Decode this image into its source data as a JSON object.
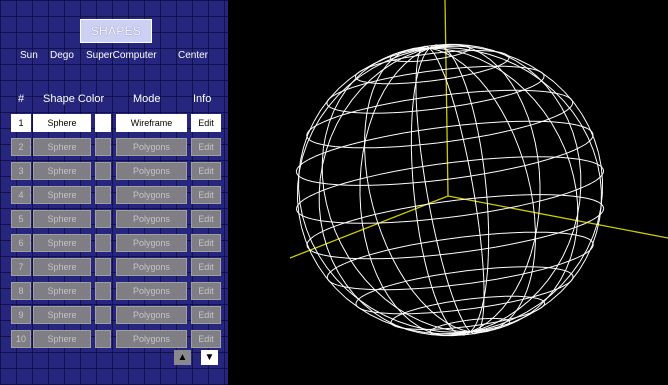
{
  "panel": {
    "title": "SHAPES",
    "credits": [
      "Sun",
      "Dego",
      "SuperComputer",
      "Center"
    ],
    "headers": {
      "number": "#",
      "shape_color": "Shape Color",
      "mode": "Mode",
      "info": "Info"
    },
    "rows": [
      {
        "num": "1",
        "shape": "Sphere",
        "mode": "Wireframe",
        "info": "Edit",
        "active": true
      },
      {
        "num": "2",
        "shape": "Sphere",
        "mode": "Polygons",
        "info": "Edit",
        "active": false
      },
      {
        "num": "3",
        "shape": "Sphere",
        "mode": "Polygons",
        "info": "Edit",
        "active": false
      },
      {
        "num": "4",
        "shape": "Sphere",
        "mode": "Polygons",
        "info": "Edit",
        "active": false
      },
      {
        "num": "5",
        "shape": "Sphere",
        "mode": "Polygons",
        "info": "Edit",
        "active": false
      },
      {
        "num": "6",
        "shape": "Sphere",
        "mode": "Polygons",
        "info": "Edit",
        "active": false
      },
      {
        "num": "7",
        "shape": "Sphere",
        "mode": "Polygons",
        "info": "Edit",
        "active": false
      },
      {
        "num": "8",
        "shape": "Sphere",
        "mode": "Polygons",
        "info": "Edit",
        "active": false
      },
      {
        "num": "9",
        "shape": "Sphere",
        "mode": "Polygons",
        "info": "Edit",
        "active": false
      },
      {
        "num": "10",
        "shape": "Sphere",
        "mode": "Polygons",
        "info": "Edit",
        "active": false
      }
    ],
    "scroll": {
      "up_icon": "triangle-up-icon",
      "down_icon": "triangle-down-icon"
    }
  },
  "viewport": {
    "background_color": "#000000",
    "axis_color": "#cccc00",
    "wireframe_color": "#ffffff",
    "shape": "Sphere",
    "mode": "Wireframe"
  },
  "colors": {
    "panel_background": "#26267e",
    "active_cell": "#ffffff",
    "inactive_cell": "#7e7e84"
  }
}
